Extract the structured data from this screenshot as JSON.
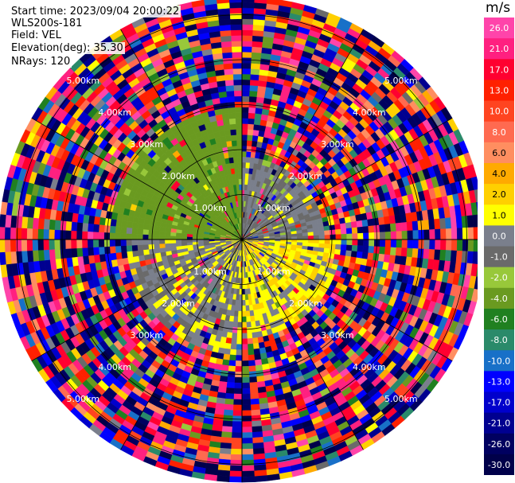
{
  "header": {
    "start_time": "Start time: 2023/09/04 20:00:22",
    "instrument": "WLS200s-181",
    "field": "Field: VEL",
    "elevation": "Elevation(deg): 35.30",
    "nrays": "NRays: 120"
  },
  "chart_data": {
    "type": "heatmap",
    "projection": "polar PPI",
    "range_rings_km": [
      1,
      2,
      3,
      4,
      5
    ],
    "range_ring_labels": [
      "1.00km",
      "2.00km",
      "3.00km",
      "4.00km",
      "5.00km"
    ],
    "max_range_km": 5.4,
    "n_rays": 120,
    "colorbar": {
      "unit": "m/s",
      "ticks": [
        "26.0",
        "21.0",
        "17.0",
        "13.0",
        "10.0",
        "8.0",
        "6.0",
        "4.0",
        "2.0",
        "1.0",
        "0.0",
        "-1.0",
        "-2.0",
        "-4.0",
        "-6.0",
        "-8.0",
        "-10.0",
        "-13.0",
        "-17.0",
        "-21.0",
        "-26.0",
        "-30.0"
      ],
      "colors": [
        "#ff44aa",
        "#ff2080",
        "#ff0030",
        "#ff2000",
        "#ff4420",
        "#ff6a50",
        "#ff8e60",
        "#ffaa00",
        "#ffd000",
        "#ffff00",
        "#7a7f8c",
        "#6a6a6a",
        "#98c83a",
        "#6a9a20",
        "#208020",
        "#2a8a6a",
        "#1870c8",
        "#0000ff",
        "#0000cc",
        "#000090",
        "#000060",
        "#00004a"
      ]
    },
    "near_field": {
      "max_range_km": 3.0,
      "sectors": [
        {
          "from_deg": 270,
          "to_deg": 360,
          "value": -3.0,
          "range_limit_km": 2.9
        },
        {
          "from_deg": 0,
          "to_deg": 90,
          "value": 0.0,
          "range_limit_km": 1.8
        },
        {
          "from_deg": 90,
          "to_deg": 180,
          "value": 1.5,
          "range_limit_km": 2.2
        },
        {
          "from_deg": 180,
          "to_deg": 270,
          "value": 0.5,
          "range_limit_km": 2.6
        }
      ]
    },
    "outer_region": "noise"
  }
}
